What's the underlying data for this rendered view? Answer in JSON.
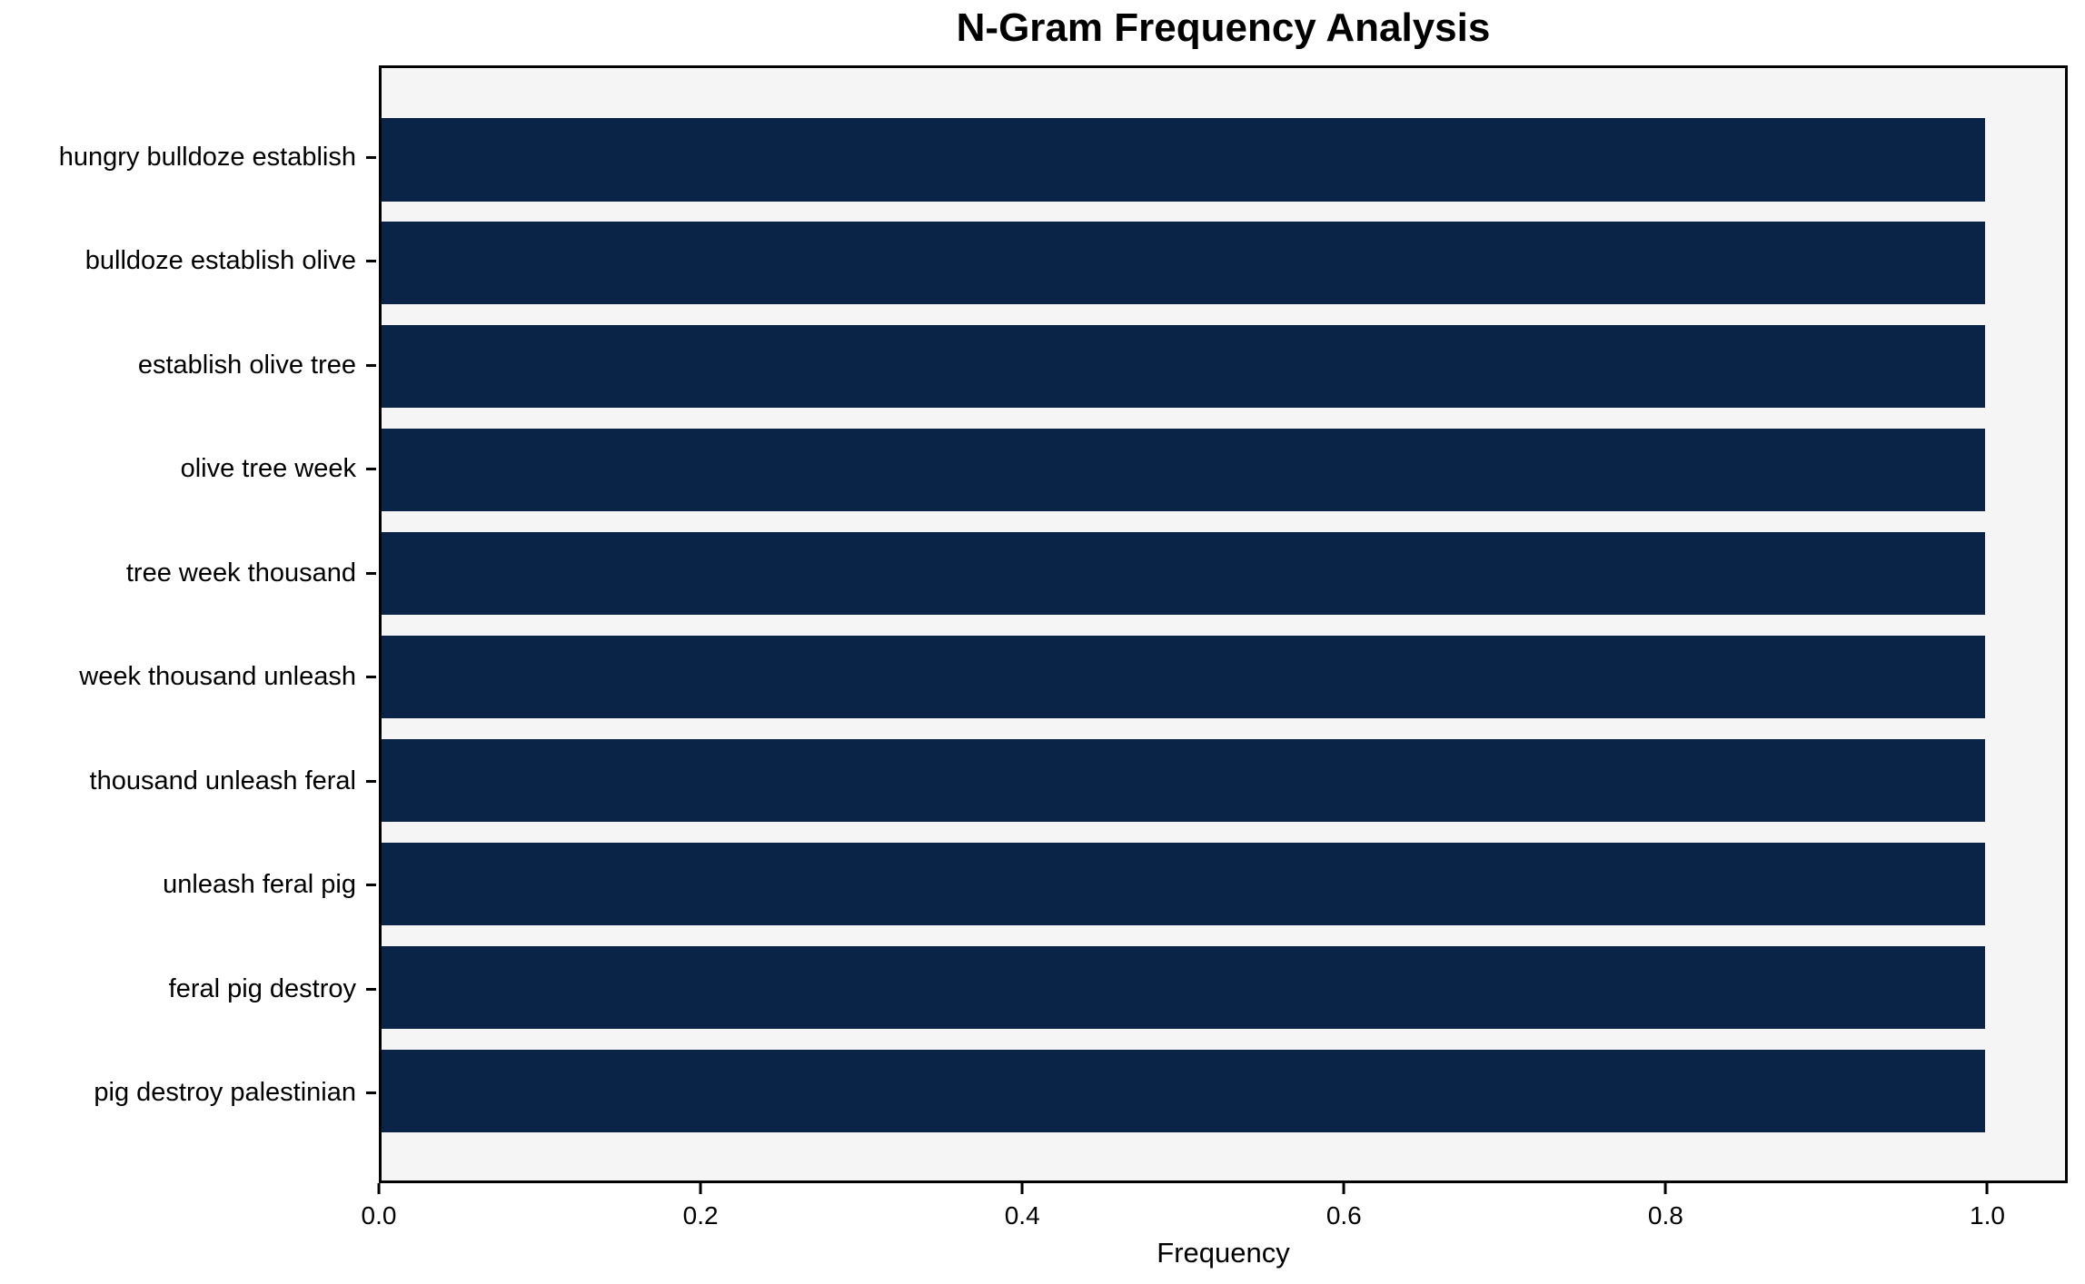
{
  "chart_data": {
    "type": "bar",
    "orientation": "horizontal",
    "title": "N-Gram Frequency Analysis",
    "xlabel": "Frequency",
    "ylabel": "",
    "categories": [
      "hungry bulldoze establish",
      "bulldoze establish olive",
      "establish olive tree",
      "olive tree week",
      "tree week thousand",
      "week thousand unleash",
      "thousand unleash feral",
      "unleash feral pig",
      "feral pig destroy",
      "pig destroy palestinian"
    ],
    "values": [
      1.0,
      1.0,
      1.0,
      1.0,
      1.0,
      1.0,
      1.0,
      1.0,
      1.0,
      1.0
    ],
    "xlim": [
      0,
      1.05
    ],
    "xticks": [
      0.0,
      0.2,
      0.4,
      0.6,
      0.8,
      1.0
    ],
    "xtick_labels": [
      "0.0",
      "0.2",
      "0.4",
      "0.6",
      "0.8",
      "1.0"
    ],
    "grid": false,
    "legend": "none",
    "colors": {
      "bar": "#0a2448",
      "plot_background": "#f5f5f5",
      "figure_background": "#ffffff",
      "spine": "#000000",
      "text": "#000000"
    }
  }
}
